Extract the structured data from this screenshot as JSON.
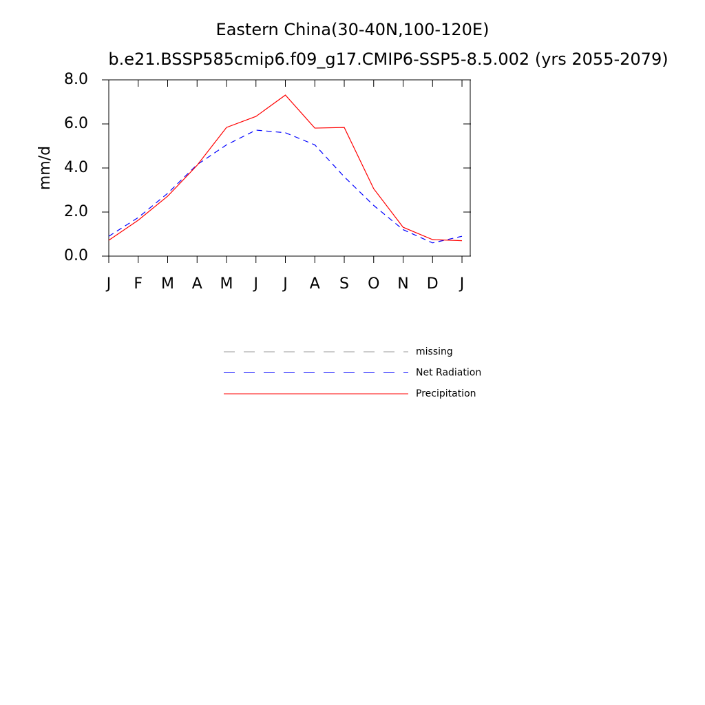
{
  "chart_data": {
    "type": "line",
    "title": "Eastern China(30-40N,100-120E)",
    "subtitle": "b.e21.BSSP585cmip6.f09_g17.CMIP6-SSP5-8.5.002 (yrs 2055-2079)",
    "y_label": "mm/d",
    "x": [
      0,
      1,
      2,
      3,
      4,
      5,
      6,
      7,
      8,
      9,
      10,
      11,
      12
    ],
    "xlim": [
      0,
      12.28
    ],
    "xticks": [
      {
        "value": 0,
        "label": "J"
      },
      {
        "value": 1,
        "label": "F"
      },
      {
        "value": 2,
        "label": "M"
      },
      {
        "value": 3,
        "label": "A"
      },
      {
        "value": 4,
        "label": "M"
      },
      {
        "value": 5,
        "label": "J"
      },
      {
        "value": 6,
        "label": "J"
      },
      {
        "value": 7,
        "label": "A"
      },
      {
        "value": 8,
        "label": "S"
      },
      {
        "value": 9,
        "label": "O"
      },
      {
        "value": 10,
        "label": "N"
      },
      {
        "value": 11,
        "label": "D"
      },
      {
        "value": 12,
        "label": "J"
      }
    ],
    "ylim": [
      0,
      8
    ],
    "yticks": [
      {
        "value": 0,
        "label": "0.0"
      },
      {
        "value": 2,
        "label": "2.0"
      },
      {
        "value": 4,
        "label": "4.0"
      },
      {
        "value": 6,
        "label": "6.0"
      },
      {
        "value": 8,
        "label": "8.0"
      }
    ],
    "series": [
      {
        "name": "missing",
        "color": "#999999",
        "dashed": true,
        "values": [
          null,
          null,
          null,
          null,
          null,
          null,
          null,
          null,
          null,
          null,
          null,
          null,
          null
        ]
      },
      {
        "name": "Net Radiation",
        "color": "#0000ff",
        "dashed": true,
        "values": [
          0.9,
          1.75,
          2.85,
          4.15,
          5.05,
          5.72,
          5.6,
          5.05,
          3.6,
          2.3,
          1.2,
          0.6,
          0.9
        ]
      },
      {
        "name": "Precipitation",
        "color": "#ff0000",
        "dashed": false,
        "values": [
          0.72,
          1.63,
          2.72,
          4.12,
          5.84,
          6.34,
          7.31,
          5.81,
          5.84,
          3.06,
          1.31,
          0.75,
          0.7
        ]
      }
    ]
  }
}
